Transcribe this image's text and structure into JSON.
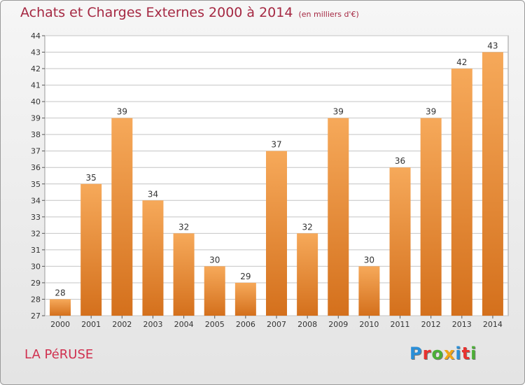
{
  "header": {
    "title": "Achats et Charges Externes 2000 à 2014",
    "unit": "(en milliers d'€)"
  },
  "footer": {
    "place": "LA PéRUSE",
    "logo": "Proxiti",
    "logo_colors": [
      "#2a8fd8",
      "#e8322f",
      "#4caf37",
      "#f2a516",
      "#2a8fd8",
      "#e8322f",
      "#4caf37"
    ]
  },
  "colors": {
    "bar_top": "#f6a95a",
    "bar_bottom": "#d4701c",
    "grid": "#c4c4c4"
  },
  "chart_data": {
    "type": "bar",
    "categories": [
      "2000",
      "2001",
      "2002",
      "2003",
      "2004",
      "2005",
      "2006",
      "2007",
      "2008",
      "2009",
      "2010",
      "2011",
      "2012",
      "2013",
      "2014"
    ],
    "values": [
      28,
      35,
      39,
      34,
      32,
      30,
      29,
      37,
      32,
      39,
      30,
      36,
      39,
      42,
      43
    ],
    "title": "Achats et Charges Externes 2000 à 2014",
    "subtitle": "(en milliers d'€)",
    "xlabel": "",
    "ylabel": "",
    "ylim": [
      27,
      44
    ],
    "yticks": [
      27,
      28,
      29,
      30,
      31,
      32,
      33,
      34,
      35,
      36,
      37,
      38,
      39,
      40,
      41,
      42,
      43,
      44
    ],
    "grid": true,
    "data_labels": true
  }
}
